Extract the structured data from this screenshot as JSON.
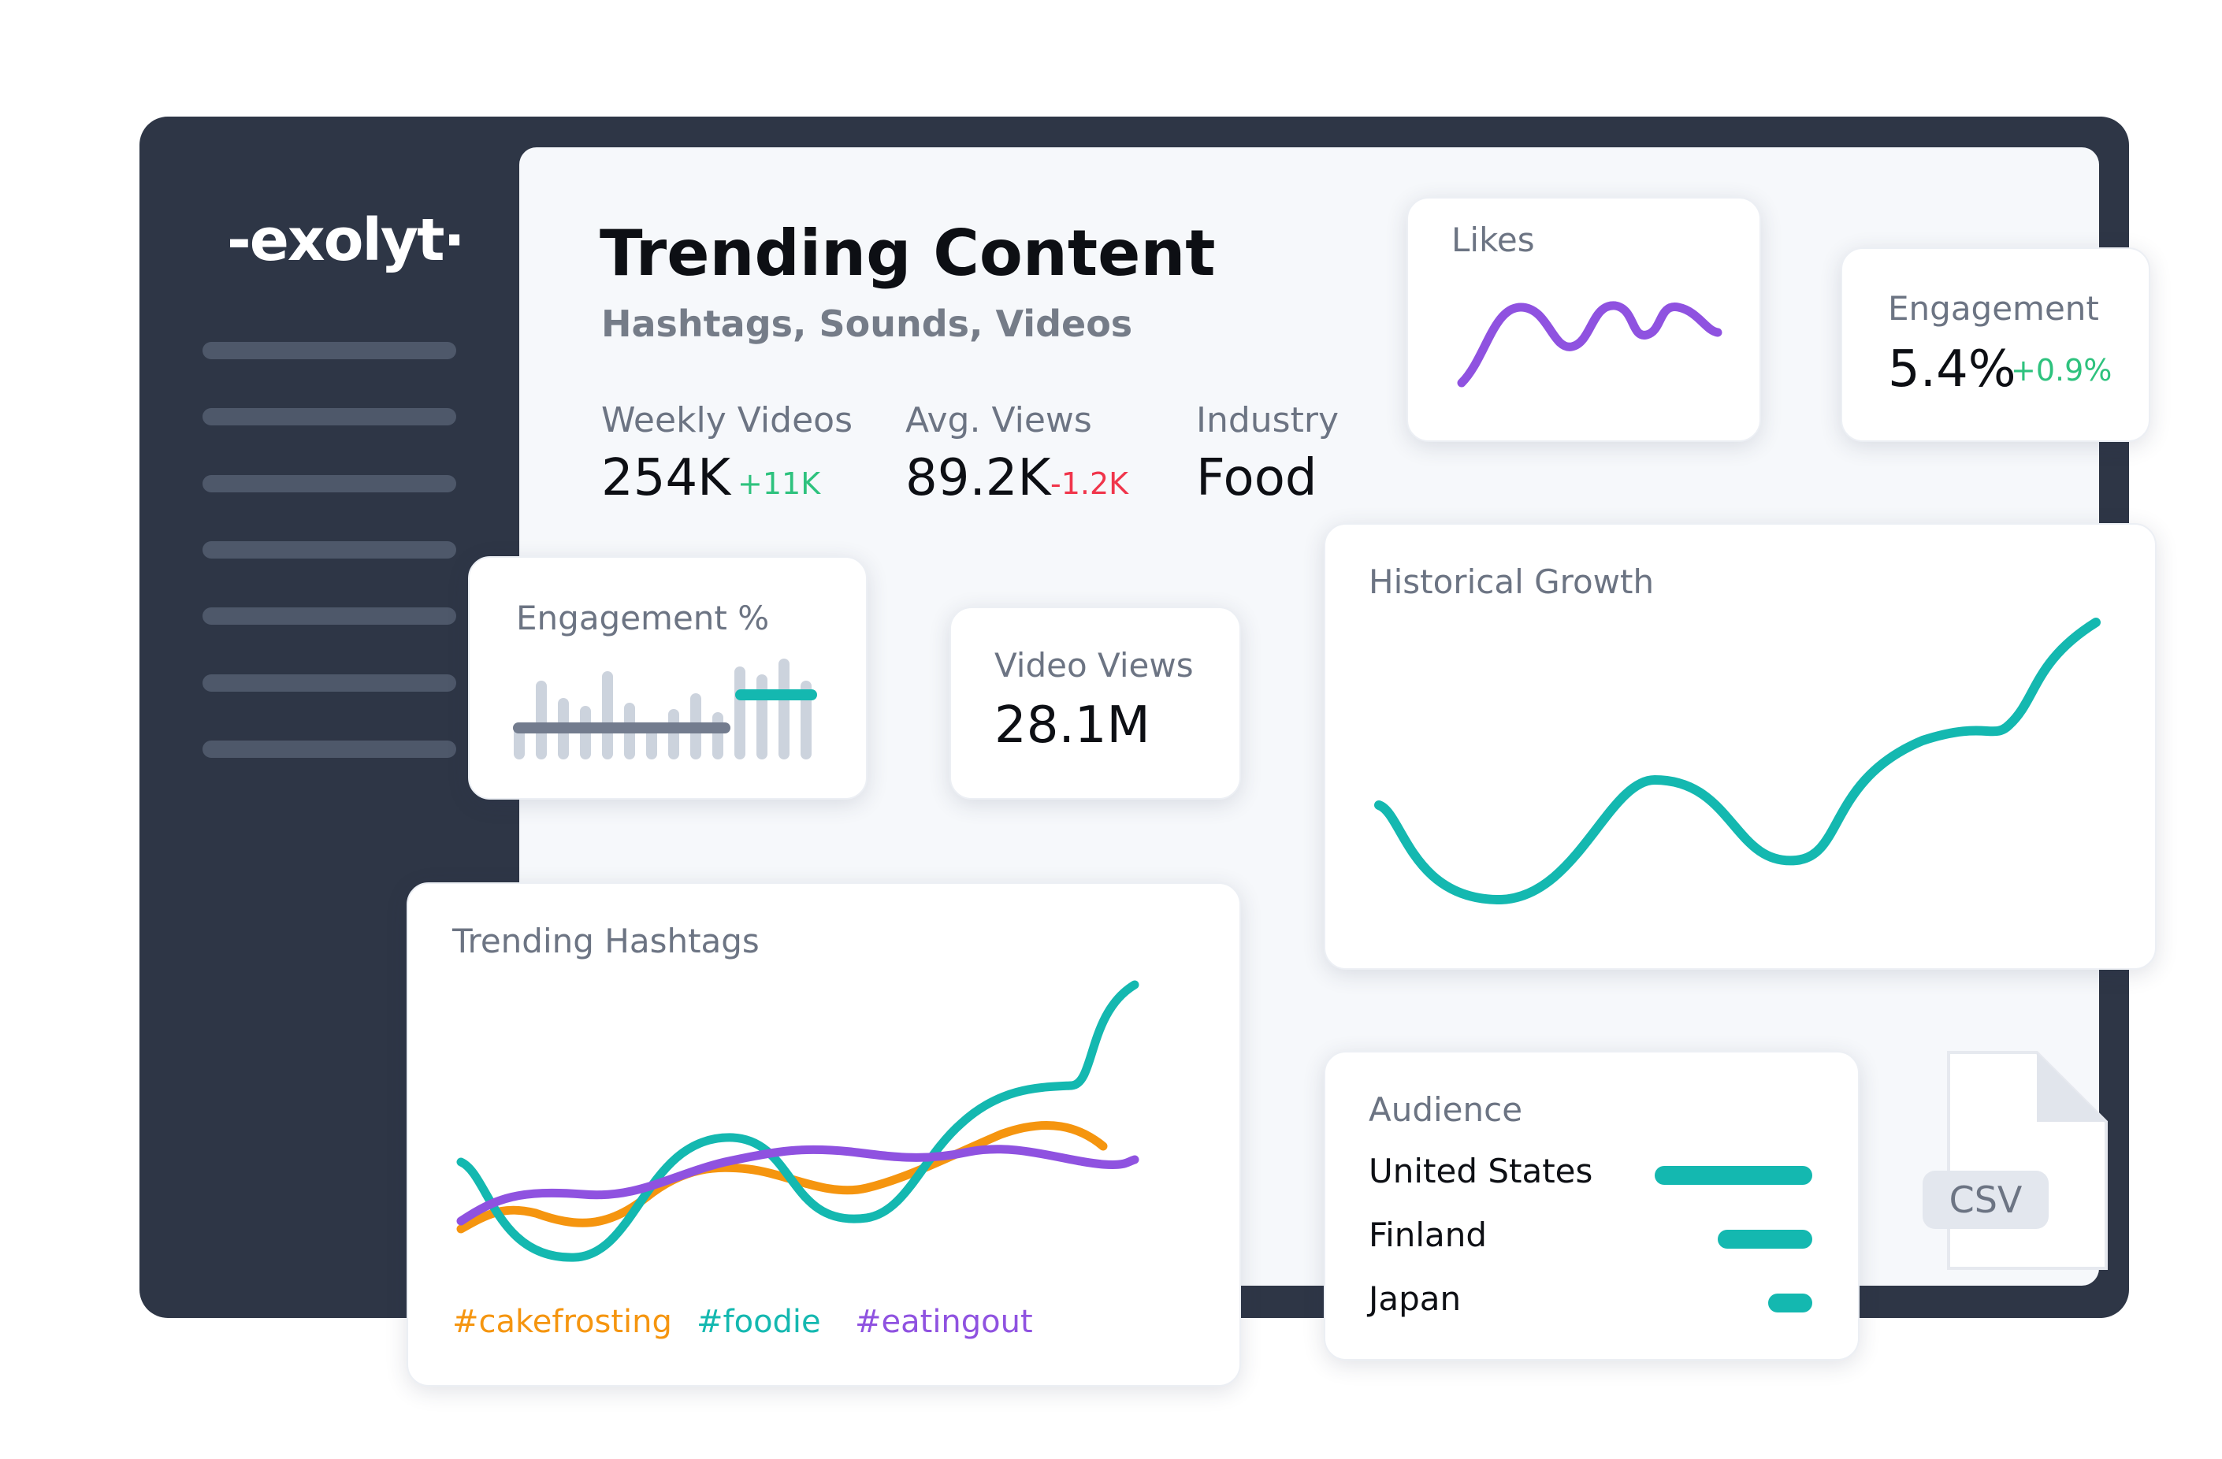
{
  "brand": {
    "logo_text": "-exolyt·"
  },
  "header": {
    "title": "Trending Content",
    "subtitle": "Hashtags, Sounds, Videos"
  },
  "stats": [
    {
      "label": "Weekly Videos",
      "value": "254K",
      "delta": "+11K",
      "trend": "up"
    },
    {
      "label": "Avg. Views",
      "value": "89.2K",
      "delta": "-1.2K",
      "trend": "down"
    },
    {
      "label": "Industry",
      "value": "Food"
    }
  ],
  "cards": {
    "likes": {
      "label": "Likes"
    },
    "engagement": {
      "label": "Engagement",
      "value": "5.4%",
      "delta": "+0.9%"
    },
    "engagement_pct": {
      "label": "Engagement %"
    },
    "video_views": {
      "label": "Video Views",
      "value": "28.1M"
    },
    "historical_growth": {
      "label": "Historical Growth"
    },
    "trending_hashtags": {
      "label": "Trending Hashtags",
      "legend": [
        "#cakefrosting",
        "#foodie",
        "#eatingout"
      ]
    },
    "audience": {
      "label": "Audience",
      "countries": [
        {
          "name": "United States",
          "share": 1.0
        },
        {
          "name": "Finland",
          "share": 0.6
        },
        {
          "name": "Japan",
          "share": 0.28
        }
      ]
    }
  },
  "file": {
    "label": "CSV"
  },
  "colors": {
    "frame": "#2e3646",
    "teal": "#14b8b0",
    "purple": "#8f52e0",
    "orange": "#f5950f",
    "positive": "#2ec27e",
    "negative": "#f0354b"
  },
  "icons": [
    "csv-file-icon"
  ]
}
